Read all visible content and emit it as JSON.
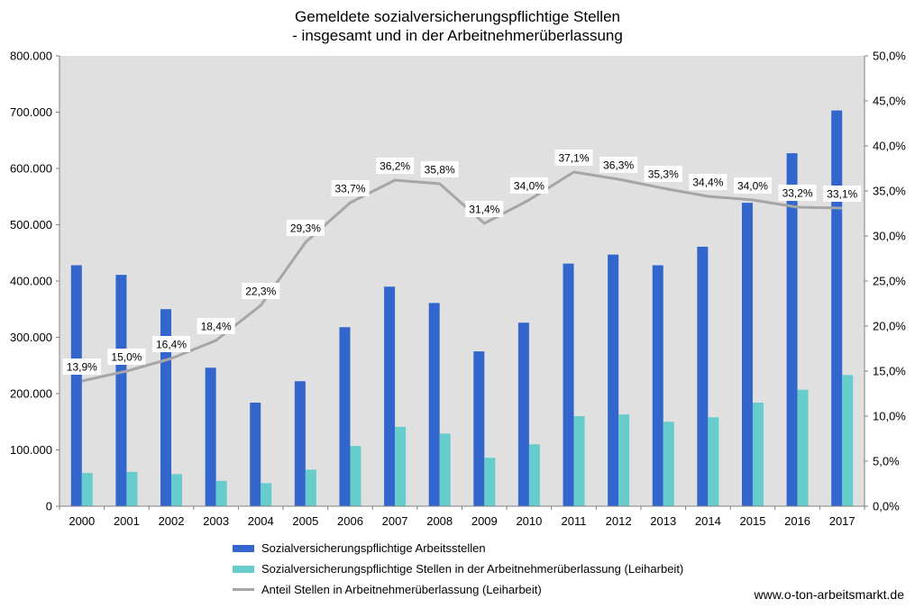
{
  "chart_data": {
    "type": "bar",
    "title_lines": [
      "Gemeldete sozialversicherungspflichtige Stellen",
      "- insgesamt und in der Arbeitnehmerüberlassung"
    ],
    "categories": [
      "2000",
      "2001",
      "2002",
      "2003",
      "2004",
      "2005",
      "2006",
      "2007",
      "2008",
      "2009",
      "2010",
      "2011",
      "2012",
      "2013",
      "2014",
      "2015",
      "2016",
      "2017"
    ],
    "series": [
      {
        "name": "Sozialversicherungspflichtige Arbeitsstellen",
        "kind": "bar",
        "axis": "left",
        "color": "#3366cc",
        "values": [
          428000,
          411000,
          350000,
          246000,
          184000,
          222000,
          318000,
          390000,
          361000,
          275000,
          326000,
          431000,
          447000,
          428000,
          461000,
          539000,
          627000,
          703000
        ]
      },
      {
        "name": "Sozialversicherungspflichtige Stellen in der Arbeitnehmerüberlassung (Leiharbeit)",
        "kind": "bar",
        "axis": "left",
        "color": "#66cccc",
        "values": [
          59000,
          61000,
          57000,
          45000,
          41000,
          65000,
          107000,
          141000,
          129000,
          86000,
          110000,
          160000,
          163000,
          150000,
          158000,
          184000,
          207000,
          233000
        ]
      },
      {
        "name": "Anteil Stellen in Arbeitnehmerüberlassung (Leiharbeit)",
        "kind": "line",
        "axis": "right",
        "color": "#a6a6a6",
        "values": [
          13.9,
          15.0,
          16.4,
          18.4,
          22.3,
          29.3,
          33.7,
          36.2,
          35.8,
          31.4,
          34.0,
          37.1,
          36.3,
          35.3,
          34.4,
          34.0,
          33.2,
          33.1
        ],
        "labels": [
          "13,9%",
          "15,0%",
          "16,4%",
          "18,4%",
          "22,3%",
          "29,3%",
          "33,7%",
          "36,2%",
          "35,8%",
          "31,4%",
          "34,0%",
          "37,1%",
          "36,3%",
          "35,3%",
          "34,4%",
          "34,0%",
          "33,2%",
          "33,1%"
        ]
      }
    ],
    "y_left": {
      "min": 0,
      "max": 800000,
      "ticks": [
        0,
        100000,
        200000,
        300000,
        400000,
        500000,
        600000,
        700000,
        800000
      ],
      "tick_labels": [
        "0",
        "100.000",
        "200.000",
        "300.000",
        "400.000",
        "500.000",
        "600.000",
        "700.000",
        "800.000"
      ]
    },
    "y_right": {
      "min": 0,
      "max": 50,
      "ticks": [
        0,
        5,
        10,
        15,
        20,
        25,
        30,
        35,
        40,
        45,
        50
      ],
      "tick_labels": [
        "0,0%",
        "5,0%",
        "10,0%",
        "15,0%",
        "20,0%",
        "25,0%",
        "30,0%",
        "35,0%",
        "40,0%",
        "45,0%",
        "50,0%"
      ]
    },
    "grid": false,
    "plot_background": "#e0e0e0",
    "legend_position": "bottom"
  },
  "source": "www.o-ton-arbeitsmarkt.de"
}
